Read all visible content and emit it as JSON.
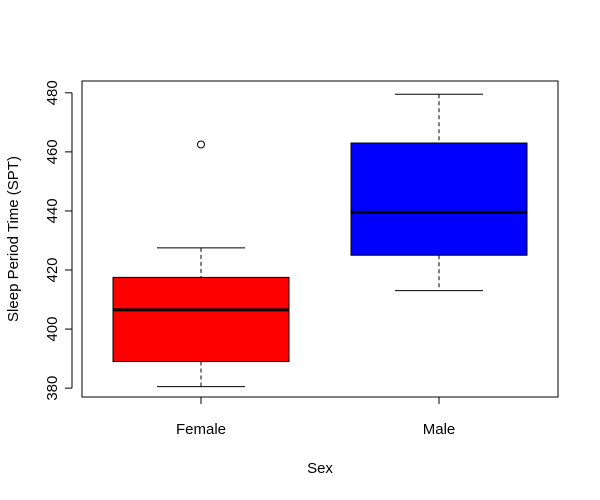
{
  "chart_data": {
    "type": "box",
    "title": "",
    "xlabel": "Sex",
    "ylabel": "Sleep Period Time (SPT)",
    "ylim": [
      377,
      484
    ],
    "yticks": [
      380,
      400,
      420,
      440,
      460,
      480
    ],
    "grid": false,
    "groups": [
      {
        "label": "Female",
        "color": "#ff0000",
        "whisker_low": 380.5,
        "q1": 389,
        "median": 406.5,
        "q3": 417.5,
        "whisker_high": 427.5,
        "outliers": [
          462.5
        ]
      },
      {
        "label": "Male",
        "color": "#0000ff",
        "whisker_low": 413,
        "q1": 425,
        "median": 439.5,
        "q3": 463,
        "whisker_high": 479.5,
        "outliers": []
      }
    ]
  }
}
